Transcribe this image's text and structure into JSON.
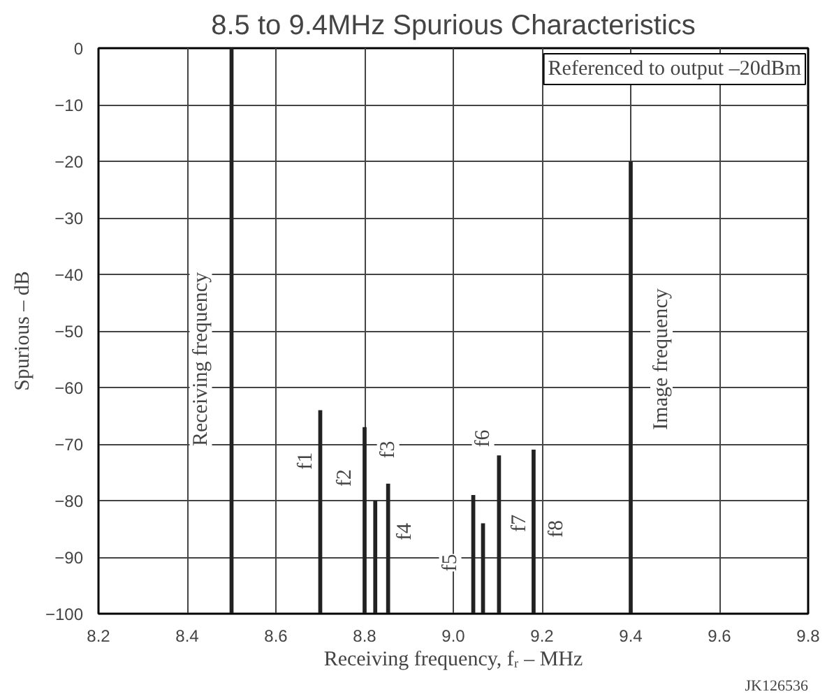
{
  "chart_data": {
    "type": "bar",
    "title": "8.5 to 9.4MHz Spurious Characteristics",
    "xlabel": "Receiving frequency, fᵣ – MHz",
    "ylabel": "Spurious – dB",
    "x": [
      8.5,
      8.7,
      8.8,
      8.824,
      8.853,
      9.045,
      9.067,
      9.103,
      9.181,
      9.4
    ],
    "base": [
      -100,
      -100,
      -100,
      -100,
      -100,
      -100,
      -100,
      -100,
      -100,
      -100
    ],
    "values": [
      100,
      36,
      33,
      20,
      23,
      21,
      16,
      28,
      29,
      80
    ],
    "color": "#222222",
    "xlim": [
      8.2,
      9.8
    ],
    "ylim": [
      -100,
      0
    ],
    "xticks": [
      8.2,
      8.4,
      8.6,
      8.8,
      {
        "value": 9.0,
        "label": "9.0"
      },
      9.2,
      9.4,
      9.6,
      9.8
    ],
    "yticks": [
      0,
      -10,
      -20,
      -30,
      -40,
      -50,
      -60,
      -70,
      -80,
      -90,
      -100
    ],
    "grid": true,
    "annotations": [
      "Referenced to output –20dBm",
      "JK126536",
      "Receiving frequency",
      "Image frequency",
      {
        "text": "f1",
        "x": 8.668,
        "y": -73
      },
      {
        "text": "f2",
        "x": 8.756,
        "y": -76
      },
      {
        "text": "f3",
        "x": 8.853,
        "y": -71
      },
      {
        "text": "f4",
        "x": 8.892,
        "y": -85.5
      },
      {
        "text": "f5",
        "x": 8.993,
        "y": -91
      },
      {
        "text": "f6",
        "x": 9.067,
        "y": -69
      },
      {
        "text": "f7",
        "x": 9.149,
        "y": -84
      },
      {
        "text": "f8",
        "x": 9.233,
        "y": -85
      }
    ]
  }
}
